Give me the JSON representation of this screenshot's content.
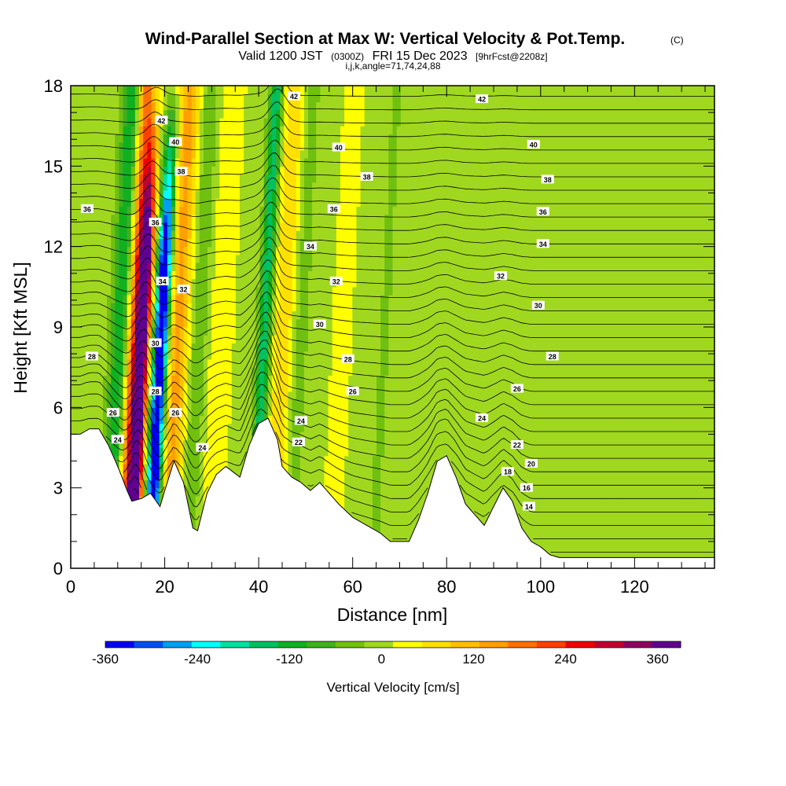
{
  "chart_data": {
    "type": "heatmap",
    "title": "Wind-Parallel Section at Max W: Vertical Velocity & Pot.Temp.",
    "title_mark": "(C)",
    "subtitle": {
      "valid": "Valid 1200 JST",
      "utc": "(0300Z)",
      "date": "FRI 15 Dec 2023",
      "forecast": "[9hrFcst@2208z]"
    },
    "grid_info": "i,j,k,angle=71,74,24,88",
    "xlabel": "Distance [nm]",
    "ylabel": "Height [Kft MSL]",
    "xlim": [
      0,
      137
    ],
    "ylim": [
      0,
      18
    ],
    "x_ticks": [
      0,
      20,
      40,
      60,
      80,
      100,
      120
    ],
    "y_ticks": [
      0,
      3,
      6,
      9,
      12,
      15,
      18
    ],
    "colorbar": {
      "label": "Vertical Velocity [cm/s]",
      "range": [
        -360,
        390
      ],
      "tick_values": [
        -360,
        -240,
        -120,
        0,
        120,
        240,
        360
      ],
      "tick_labels": [
        "-360",
        "-240",
        "-120",
        "0",
        "120",
        "240",
        "360"
      ],
      "colors": [
        "#0000f0",
        "#0050f0",
        "#00a0f0",
        "#00ffff",
        "#00e0a0",
        "#00c060",
        "#10b020",
        "#40b020",
        "#70c010",
        "#a0d820",
        "#ffff00",
        "#ffe000",
        "#ffc000",
        "#ffa000",
        "#ff7000",
        "#ff4000",
        "#f00000",
        "#c00030",
        "#900060",
        "#600090"
      ]
    },
    "velocity_features": [
      {
        "x": 14.5,
        "w": 1.5,
        "amp": 420,
        "comment": "strong updraft"
      },
      {
        "x": 12.5,
        "w": 1.8,
        "amp": 200
      },
      {
        "x": 18.5,
        "w": 1.5,
        "amp": -430,
        "comment": "strong downdraft"
      },
      {
        "x": 10.0,
        "w": 2.2,
        "amp": -150
      },
      {
        "x": 22.0,
        "w": 2.5,
        "amp": 140
      },
      {
        "x": 26.5,
        "w": 2.0,
        "amp": -60
      },
      {
        "x": 31.0,
        "w": 3.0,
        "amp": 40
      },
      {
        "x": 40.5,
        "w": 1.4,
        "amp": -160
      },
      {
        "x": 44.5,
        "w": 2.2,
        "amp": 90
      },
      {
        "x": 48.0,
        "w": 2.0,
        "amp": -40
      },
      {
        "x": 57.0,
        "w": 3.0,
        "amp": 25
      },
      {
        "x": 66.0,
        "w": 2.5,
        "amp": -25
      },
      {
        "x": 73.0,
        "w": 3.0,
        "amp": -20
      },
      {
        "x": 86.0,
        "w": 3.0,
        "amp": -20
      },
      {
        "x": 100.0,
        "w": 3.0,
        "amp": -20
      },
      {
        "x": 113.0,
        "w": 3.5,
        "amp": -18
      },
      {
        "x": 126.0,
        "w": 3.0,
        "amp": -20
      }
    ],
    "terrain_height_kft": [
      [
        0,
        5.0
      ],
      [
        2,
        5.0
      ],
      [
        4,
        5.2
      ],
      [
        6,
        5.2
      ],
      [
        8,
        4.6
      ],
      [
        10,
        3.8
      ],
      [
        12,
        2.9
      ],
      [
        13,
        2.5
      ],
      [
        15,
        2.6
      ],
      [
        17,
        2.8
      ],
      [
        19,
        2.3
      ],
      [
        20,
        2.9
      ],
      [
        22,
        4.0
      ],
      [
        24,
        3.2
      ],
      [
        26,
        1.5
      ],
      [
        27,
        1.4
      ],
      [
        29,
        2.8
      ],
      [
        31,
        3.5
      ],
      [
        33,
        3.8
      ],
      [
        36,
        3.4
      ],
      [
        38,
        4.6
      ],
      [
        40,
        5.4
      ],
      [
        42,
        5.6
      ],
      [
        44,
        4.8
      ],
      [
        45,
        3.8
      ],
      [
        47,
        3.4
      ],
      [
        49,
        3.2
      ],
      [
        51,
        2.9
      ],
      [
        53,
        3.2
      ],
      [
        55,
        2.8
      ],
      [
        57,
        2.4
      ],
      [
        60,
        1.9
      ],
      [
        63,
        1.6
      ],
      [
        66,
        1.3
      ],
      [
        68,
        1.0
      ],
      [
        72,
        1.0
      ],
      [
        74,
        1.8
      ],
      [
        76,
        2.8
      ],
      [
        78,
        4.0
      ],
      [
        80,
        4.2
      ],
      [
        82,
        3.4
      ],
      [
        84,
        2.4
      ],
      [
        86,
        2.0
      ],
      [
        88,
        1.6
      ],
      [
        90,
        2.3
      ],
      [
        92,
        3.0
      ],
      [
        94,
        2.5
      ],
      [
        96,
        1.5
      ],
      [
        98,
        1.0
      ],
      [
        100,
        0.8
      ],
      [
        102,
        0.5
      ],
      [
        104,
        0.4
      ],
      [
        137,
        0.4
      ]
    ],
    "theta_contour_levels": [
      14,
      16,
      18,
      20,
      22,
      24,
      26,
      28,
      30,
      32,
      34,
      36,
      38,
      40,
      42
    ],
    "contour_labels": [
      {
        "x": 47.5,
        "y": 17.6,
        "text": "42"
      },
      {
        "x": 19.3,
        "y": 16.7,
        "text": "42"
      },
      {
        "x": 22.3,
        "y": 15.9,
        "text": "40"
      },
      {
        "x": 23.5,
        "y": 14.8,
        "text": "38"
      },
      {
        "x": 3.5,
        "y": 13.4,
        "text": "36"
      },
      {
        "x": 18.0,
        "y": 12.9,
        "text": "36"
      },
      {
        "x": 19.5,
        "y": 10.7,
        "text": "34"
      },
      {
        "x": 24.0,
        "y": 10.4,
        "text": "32"
      },
      {
        "x": 18.0,
        "y": 8.4,
        "text": "30"
      },
      {
        "x": 4.5,
        "y": 7.9,
        "text": "28"
      },
      {
        "x": 18.0,
        "y": 6.6,
        "text": "28"
      },
      {
        "x": 22.3,
        "y": 5.8,
        "text": "26"
      },
      {
        "x": 9.0,
        "y": 5.8,
        "text": "26"
      },
      {
        "x": 10.0,
        "y": 4.8,
        "text": "24"
      },
      {
        "x": 28.0,
        "y": 4.5,
        "text": "24"
      },
      {
        "x": 57.0,
        "y": 15.7,
        "text": "40"
      },
      {
        "x": 63.0,
        "y": 14.6,
        "text": "38"
      },
      {
        "x": 56.0,
        "y": 13.4,
        "text": "36"
      },
      {
        "x": 51.0,
        "y": 12.0,
        "text": "34"
      },
      {
        "x": 56.5,
        "y": 10.7,
        "text": "32"
      },
      {
        "x": 53.0,
        "y": 9.1,
        "text": "30"
      },
      {
        "x": 59.0,
        "y": 7.8,
        "text": "28"
      },
      {
        "x": 60.0,
        "y": 6.6,
        "text": "26"
      },
      {
        "x": 49.0,
        "y": 5.5,
        "text": "24"
      },
      {
        "x": 48.5,
        "y": 4.7,
        "text": "22"
      },
      {
        "x": 87.5,
        "y": 17.5,
        "text": "42"
      },
      {
        "x": 98.5,
        "y": 15.8,
        "text": "40"
      },
      {
        "x": 101.5,
        "y": 14.5,
        "text": "38"
      },
      {
        "x": 100.5,
        "y": 13.3,
        "text": "36"
      },
      {
        "x": 100.5,
        "y": 12.1,
        "text": "34"
      },
      {
        "x": 91.5,
        "y": 10.9,
        "text": "32"
      },
      {
        "x": 99.5,
        "y": 9.8,
        "text": "30"
      },
      {
        "x": 102.5,
        "y": 7.9,
        "text": "28"
      },
      {
        "x": 95.0,
        "y": 6.7,
        "text": "26"
      },
      {
        "x": 87.5,
        "y": 5.6,
        "text": "24"
      },
      {
        "x": 95.0,
        "y": 4.6,
        "text": "22"
      },
      {
        "x": 98.0,
        "y": 3.9,
        "text": "20"
      },
      {
        "x": 93.0,
        "y": 3.6,
        "text": "18"
      },
      {
        "x": 97.0,
        "y": 3.0,
        "text": "16"
      },
      {
        "x": 97.5,
        "y": 2.3,
        "text": "14"
      }
    ]
  }
}
